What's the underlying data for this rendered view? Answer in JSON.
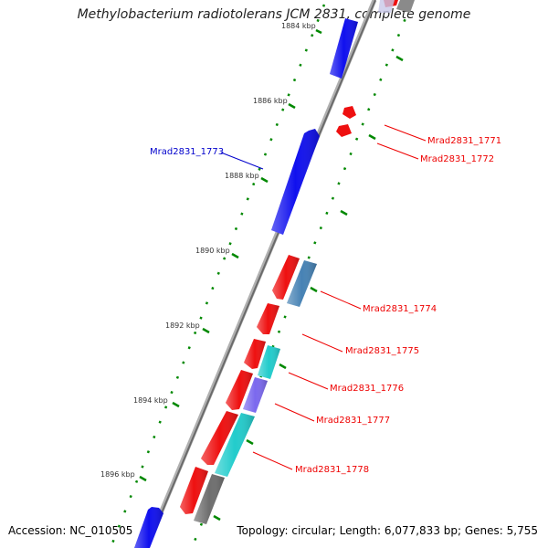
{
  "header": {
    "title": "Methylobacterium radiotolerans JCM 2831, complete genome"
  },
  "footer": {
    "accession": "Accession: NC_010505",
    "topology": "Topology: circular; Length: 6,077,833 bp; Genes: 5,755"
  },
  "ticks": [
    {
      "label": "1884 kbp"
    },
    {
      "label": "1886 kbp"
    },
    {
      "label": "1888 kbp"
    },
    {
      "label": "1890 kbp"
    },
    {
      "label": "1892 kbp"
    },
    {
      "label": "1894 kbp"
    },
    {
      "label": "1896 kbp"
    }
  ],
  "gene_labels": [
    {
      "text": "Mrad2831_1771",
      "color": "#ee0000"
    },
    {
      "text": "Mrad2831_1772",
      "color": "#ee0000"
    },
    {
      "text": "Mrad2831_1773",
      "color": "#0000cc"
    },
    {
      "text": "Mrad2831_1774",
      "color": "#ee0000"
    },
    {
      "text": "Mrad2831_1775",
      "color": "#ee0000"
    },
    {
      "text": "Mrad2831_1776",
      "color": "#ee0000"
    },
    {
      "text": "Mrad2831_1777",
      "color": "#ee0000"
    },
    {
      "text": "Mrad2831_1778",
      "color": "#ee0000"
    }
  ],
  "colors": {
    "backbone": "#8a8a8a",
    "forward": "#1010ee",
    "reverse": "#ee1010",
    "tick": "#008800",
    "steelblue": "#4682b4",
    "cyan": "#22cccc",
    "slate": "#7b68ee",
    "gray": "#6e6e6e"
  }
}
